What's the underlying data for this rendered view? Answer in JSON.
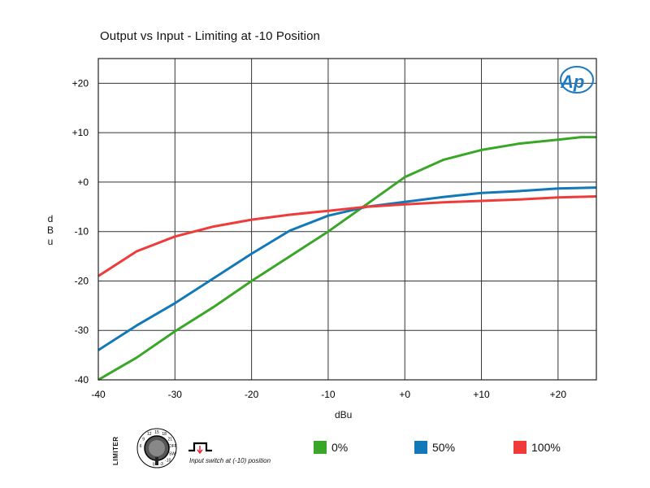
{
  "chart_data": {
    "type": "line",
    "title": "Output vs Input - Limiting at -10 Position",
    "xlabel": "dBu",
    "ylabel": "dBu",
    "xlim": [
      -40,
      25
    ],
    "ylim": [
      -40,
      25
    ],
    "x_ticks": [
      "-40",
      "-30",
      "-20",
      "-10",
      "+0",
      "+10",
      "+20"
    ],
    "y_ticks": [
      "+20",
      "+10",
      "+0",
      "-10",
      "-20",
      "-30",
      "-40"
    ],
    "grid": true,
    "series": [
      {
        "name": "0%",
        "color": "#3aa628",
        "x": [
          -40,
          -35,
          -30,
          -25,
          -20,
          -15,
          -10,
          -5,
          0,
          5,
          10,
          15,
          20,
          23,
          25
        ],
        "y": [
          -40,
          -35.5,
          -30.2,
          -25.3,
          -20,
          -15,
          -10,
          -4.5,
          1,
          4.5,
          6.5,
          7.8,
          8.6,
          9.1,
          9.1
        ]
      },
      {
        "name": "50%",
        "color": "#1278b8",
        "x": [
          -40,
          -35,
          -30,
          -25,
          -20,
          -15,
          -10,
          -5,
          0,
          5,
          10,
          15,
          20,
          25
        ],
        "y": [
          -34,
          -29,
          -24.5,
          -19.5,
          -14.5,
          -9.8,
          -6.8,
          -5,
          -4,
          -3,
          -2.2,
          -1.8,
          -1.3,
          -1.1
        ]
      },
      {
        "name": "100%",
        "color": "#ef3b3a",
        "x": [
          -40,
          -35,
          -30,
          -25,
          -20,
          -15,
          -10,
          -5,
          0,
          5,
          10,
          15,
          20,
          25
        ],
        "y": [
          -19,
          -14,
          -11,
          -9,
          -7.6,
          -6.6,
          -5.8,
          -5,
          -4.5,
          -4.1,
          -3.8,
          -3.5,
          -3.1,
          -2.9
        ]
      }
    ]
  },
  "legend": [
    {
      "label": "0%",
      "color": "#3aa628"
    },
    {
      "label": "50%",
      "color": "#1278b8"
    },
    {
      "label": "100%",
      "color": "#ef3b3a"
    }
  ],
  "limiter_control": {
    "label": "LIMITER",
    "knob_marks": [
      "6",
      "9",
      "12",
      "15",
      "18",
      "21",
      "OFF",
      "SW",
      "-10",
      "-3",
      "0"
    ],
    "switch_note": "Input switch at (-10) position"
  },
  "logo_text": "Ap"
}
